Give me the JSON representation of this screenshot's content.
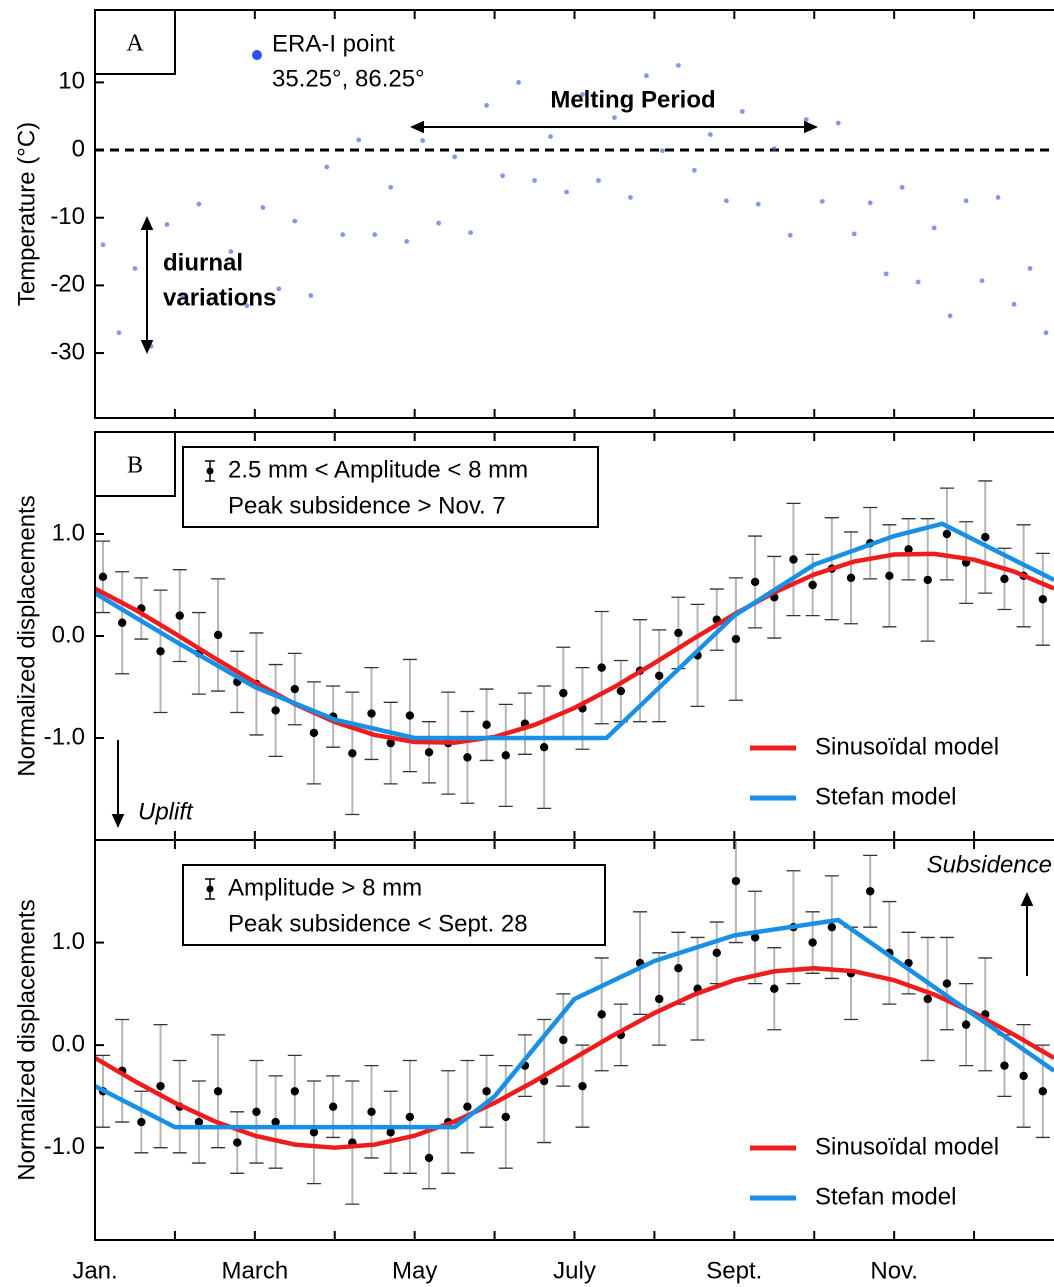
{
  "chart_data": [
    {
      "type": "scatter",
      "panel_label": "A",
      "ylabel": "Temperature (°C)",
      "xlim": [
        0,
        12
      ],
      "ylim": [
        -39.6,
        20.7
      ],
      "yticks": [
        10,
        0,
        -10,
        -20,
        -30
      ],
      "hline": 0,
      "legend_subtitle": "35.25°, 86.25°",
      "annotations": {
        "melting": "Melting Period",
        "diurnal": [
          "diurnal",
          "variations"
        ]
      },
      "series": [
        {
          "name": "ERA-I point",
          "color": "#2a52f0",
          "x": [
            0.1,
            0.3,
            0.5,
            0.7,
            0.9,
            1.1,
            1.3,
            1.5,
            1.7,
            1.9,
            2.1,
            2.3,
            2.5,
            2.7,
            2.9,
            3.1,
            3.3,
            3.5,
            3.7,
            3.9,
            4.1,
            4.3,
            4.5,
            4.7,
            4.9,
            5.1,
            5.3,
            5.5,
            5.7,
            5.9,
            6.1,
            6.3,
            6.5,
            6.7,
            6.9,
            7.1,
            7.3,
            7.5,
            7.7,
            7.9,
            8.1,
            8.3,
            8.5,
            8.7,
            8.9,
            9.1,
            9.3,
            9.5,
            9.7,
            9.9,
            10.1,
            10.3,
            10.5,
            10.7,
            10.9,
            11.1,
            11.3,
            11.5,
            11.7,
            11.9
          ],
          "values": [
            -14,
            -27,
            -17.5,
            -29,
            -11,
            -21.6,
            -8,
            -22,
            -15,
            -23,
            -8.5,
            -20.5,
            -10.5,
            -21.5,
            -2.5,
            -12.5,
            1.5,
            -12.5,
            -5.5,
            -13.5,
            1.4,
            -10.8,
            -1,
            -12.2,
            6.6,
            -3.8,
            10,
            -4.5,
            2,
            -6.2,
            8.2,
            -4.5,
            4.8,
            -7,
            11,
            -0.1,
            12.5,
            -3,
            2.3,
            -7.5,
            5.7,
            -8,
            0.2,
            -12.6,
            4.5,
            -7.6,
            4,
            -12.4,
            -7.8,
            -18.3,
            -5.5,
            -19.5,
            -11.5,
            -24.5,
            -7.5,
            -19.3,
            -7,
            -22.8,
            -17.5,
            -27
          ]
        }
      ]
    },
    {
      "type": "errorbar",
      "panel_label": "B",
      "ylabel": "Normalized displacements",
      "xlim": [
        0,
        12
      ],
      "ylim": [
        -2,
        2
      ],
      "yticks": [
        {
          "value": 1,
          "label": "1.0"
        },
        {
          "value": 0,
          "label": "0.0"
        },
        {
          "value": -1,
          "label": "-1.0"
        }
      ],
      "legend_box": [
        "2.5 mm < Amplitude < 8 mm",
        "Peak subsidence > Nov. 7"
      ],
      "annotation": "Uplift",
      "x": [
        0.1,
        0.34,
        0.58,
        0.82,
        1.06,
        1.3,
        1.54,
        1.78,
        2.02,
        2.26,
        2.5,
        2.74,
        2.98,
        3.22,
        3.46,
        3.7,
        3.94,
        4.18,
        4.42,
        4.66,
        4.9,
        5.14,
        5.38,
        5.62,
        5.86,
        6.1,
        6.34,
        6.58,
        6.82,
        7.06,
        7.3,
        7.54,
        7.78,
        8.02,
        8.26,
        8.5,
        8.74,
        8.98,
        9.22,
        9.46,
        9.7,
        9.94,
        10.18,
        10.42,
        10.66,
        10.9,
        11.14,
        11.38,
        11.62,
        11.86
      ],
      "values": [
        0.58,
        0.13,
        0.27,
        -0.15,
        0.2,
        -0.17,
        0.01,
        -0.45,
        -0.47,
        -0.73,
        -0.52,
        -0.95,
        -0.79,
        -1.15,
        -0.76,
        -1.05,
        -0.78,
        -1.14,
        -1.05,
        -1.19,
        -0.87,
        -1.17,
        -0.86,
        -1.09,
        -0.56,
        -0.71,
        -0.31,
        -0.54,
        -0.34,
        -0.39,
        0.03,
        -0.19,
        0.16,
        -0.03,
        0.53,
        0.38,
        0.75,
        0.5,
        0.66,
        0.57,
        0.91,
        0.59,
        0.85,
        0.55,
        1.0,
        0.72,
        0.97,
        0.56,
        0.59,
        0.36
      ],
      "errors": [
        0.35,
        0.5,
        0.3,
        0.6,
        0.45,
        0.4,
        0.55,
        0.3,
        0.5,
        0.45,
        0.35,
        0.5,
        0.3,
        0.6,
        0.45,
        0.4,
        0.55,
        0.3,
        0.5,
        0.45,
        0.35,
        0.5,
        0.3,
        0.6,
        0.45,
        0.4,
        0.55,
        0.3,
        0.5,
        0.45,
        0.35,
        0.5,
        0.3,
        0.6,
        0.45,
        0.4,
        0.55,
        0.3,
        0.5,
        0.45,
        0.35,
        0.5,
        0.3,
        0.6,
        0.45,
        0.4,
        0.55,
        0.3,
        0.5,
        0.45
      ],
      "series": [
        {
          "name": "Sinusoïdal model",
          "color": "#ee1c1c",
          "x": [
            0,
            0.5,
            1,
            1.5,
            2,
            2.5,
            3,
            3.5,
            4,
            4.5,
            5,
            5.5,
            6,
            6.5,
            7,
            7.5,
            8,
            8.5,
            9,
            9.5,
            10,
            10.5,
            11,
            11.5,
            12
          ],
          "values": [
            0.465,
            0.259,
            0.024,
            -0.218,
            -0.453,
            -0.667,
            -0.843,
            -0.97,
            -1.039,
            -1.045,
            -0.989,
            -0.872,
            -0.705,
            -0.499,
            -0.265,
            -0.022,
            0.213,
            0.427,
            0.603,
            0.73,
            0.799,
            0.805,
            0.748,
            0.632,
            0.465
          ]
        },
        {
          "name": "Stefan model",
          "color": "#1a8fe6",
          "x": [
            0,
            1,
            2,
            3,
            4,
            6.4,
            8,
            9,
            10,
            10.6,
            12
          ],
          "values": [
            0.42,
            -0.05,
            -0.5,
            -0.82,
            -1.0,
            -1.0,
            0.2,
            0.7,
            0.98,
            1.1,
            0.55
          ]
        }
      ]
    },
    {
      "type": "errorbar",
      "ylabel": "Normalized displacements",
      "xlim": [
        0,
        12
      ],
      "ylim": [
        -1.9,
        2.0
      ],
      "yticks": [
        {
          "value": 1,
          "label": "1.0"
        },
        {
          "value": 0,
          "label": "0.0"
        },
        {
          "value": -1,
          "label": "-1.0"
        }
      ],
      "xticks": [
        {
          "value": 0,
          "label": "Jan."
        },
        {
          "value": 2,
          "label": "March"
        },
        {
          "value": 4,
          "label": "May"
        },
        {
          "value": 6,
          "label": "July"
        },
        {
          "value": 8,
          "label": "Sept."
        },
        {
          "value": 10,
          "label": "Nov."
        }
      ],
      "xminorticks": [
        1,
        3,
        5,
        7,
        9,
        11
      ],
      "legend_box": [
        "Amplitude > 8 mm",
        "Peak subsidence < Sept. 28"
      ],
      "annotation": "Subsidence",
      "x": [
        0.1,
        0.34,
        0.58,
        0.82,
        1.06,
        1.3,
        1.54,
        1.78,
        2.02,
        2.26,
        2.5,
        2.74,
        2.98,
        3.22,
        3.46,
        3.7,
        3.94,
        4.18,
        4.42,
        4.66,
        4.9,
        5.14,
        5.38,
        5.62,
        5.86,
        6.1,
        6.34,
        6.58,
        6.82,
        7.06,
        7.3,
        7.54,
        7.78,
        8.02,
        8.26,
        8.5,
        8.74,
        8.98,
        9.22,
        9.46,
        9.7,
        9.94,
        10.18,
        10.42,
        10.66,
        10.9,
        11.14,
        11.38,
        11.62,
        11.86
      ],
      "values": [
        -0.45,
        -0.25,
        -0.75,
        -0.4,
        -0.6,
        -0.75,
        -0.45,
        -0.95,
        -0.65,
        -0.75,
        -0.45,
        -0.85,
        -0.6,
        -0.95,
        -0.65,
        -0.85,
        -0.7,
        -1.1,
        -0.75,
        -0.6,
        -0.45,
        -0.7,
        -0.2,
        -0.35,
        0.05,
        -0.4,
        0.3,
        0.1,
        0.8,
        0.45,
        0.75,
        0.55,
        0.9,
        1.6,
        1.05,
        0.55,
        1.15,
        1.0,
        1.15,
        0.7,
        1.5,
        0.9,
        0.8,
        0.45,
        0.6,
        0.2,
        0.3,
        -0.2,
        -0.3,
        -0.45
      ],
      "errors": [
        0.35,
        0.5,
        0.3,
        0.6,
        0.45,
        0.4,
        0.55,
        0.3,
        0.5,
        0.45,
        0.35,
        0.5,
        0.3,
        0.6,
        0.45,
        0.4,
        0.55,
        0.3,
        0.5,
        0.45,
        0.35,
        0.5,
        0.3,
        0.6,
        0.45,
        0.4,
        0.55,
        0.3,
        0.5,
        0.45,
        0.35,
        0.5,
        0.3,
        0.6,
        0.45,
        0.4,
        0.55,
        0.3,
        0.5,
        0.45,
        0.35,
        0.5,
        0.3,
        0.6,
        0.45,
        0.4,
        0.55,
        0.3,
        0.5,
        0.45
      ],
      "series": [
        {
          "name": "Sinusoïdal model",
          "color": "#ee1c1c",
          "x": [
            0,
            0.5,
            1,
            1.5,
            2,
            2.5,
            3,
            3.5,
            4,
            4.5,
            5,
            5.5,
            6,
            6.5,
            7,
            7.5,
            8,
            8.5,
            9,
            9.5,
            10,
            10.5,
            11,
            11.5,
            12
          ],
          "values": [
            -0.125,
            -0.352,
            -0.563,
            -0.744,
            -0.883,
            -0.97,
            -1.0,
            -0.97,
            -0.883,
            -0.744,
            -0.563,
            -0.352,
            -0.125,
            0.102,
            0.313,
            0.494,
            0.633,
            0.72,
            0.75,
            0.72,
            0.633,
            0.494,
            0.313,
            0.102,
            -0.125
          ]
        },
        {
          "name": "Stefan model",
          "color": "#1a8fe6",
          "x": [
            0,
            1,
            4.5,
            5,
            6,
            7,
            8,
            9.3,
            12
          ],
          "values": [
            -0.4,
            -0.8,
            -0.8,
            -0.5,
            0.45,
            0.82,
            1.07,
            1.22,
            -0.25
          ]
        }
      ]
    }
  ]
}
